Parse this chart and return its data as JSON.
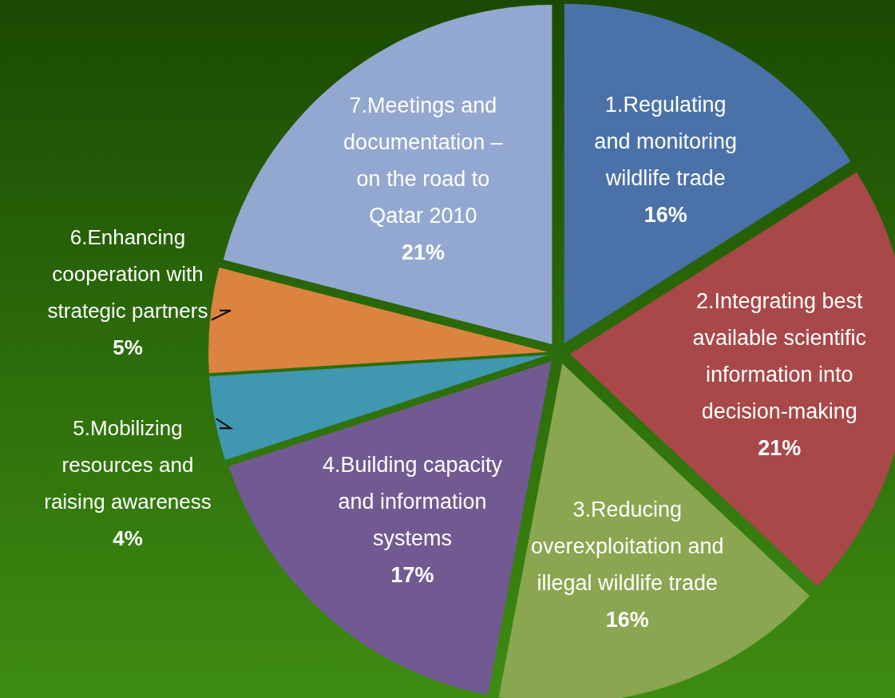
{
  "chart_data": {
    "type": "pie",
    "categories": [
      "1.Regulating and monitoring wildlife trade",
      "2.Integrating best available scientific information into decision-making",
      "3.Reducing overexploitation and illegal wildlife trade",
      "4.Building capacity and information systems",
      "5.Mobilizing resources and raising awareness",
      "6.Enhancing cooperation with strategic partners",
      "7.Meetings and documentation – on the road to Qatar 2010"
    ],
    "values": [
      16,
      21,
      16,
      17,
      4,
      5,
      21
    ],
    "value_labels": [
      "16%",
      "21%",
      "16%",
      "17%",
      "4%",
      "5%",
      "21%"
    ],
    "colors": [
      "#4a72a8",
      "#a84848",
      "#8aa650",
      "#715a92",
      "#4098b0",
      "#db8440",
      "#93a8d0"
    ]
  }
}
